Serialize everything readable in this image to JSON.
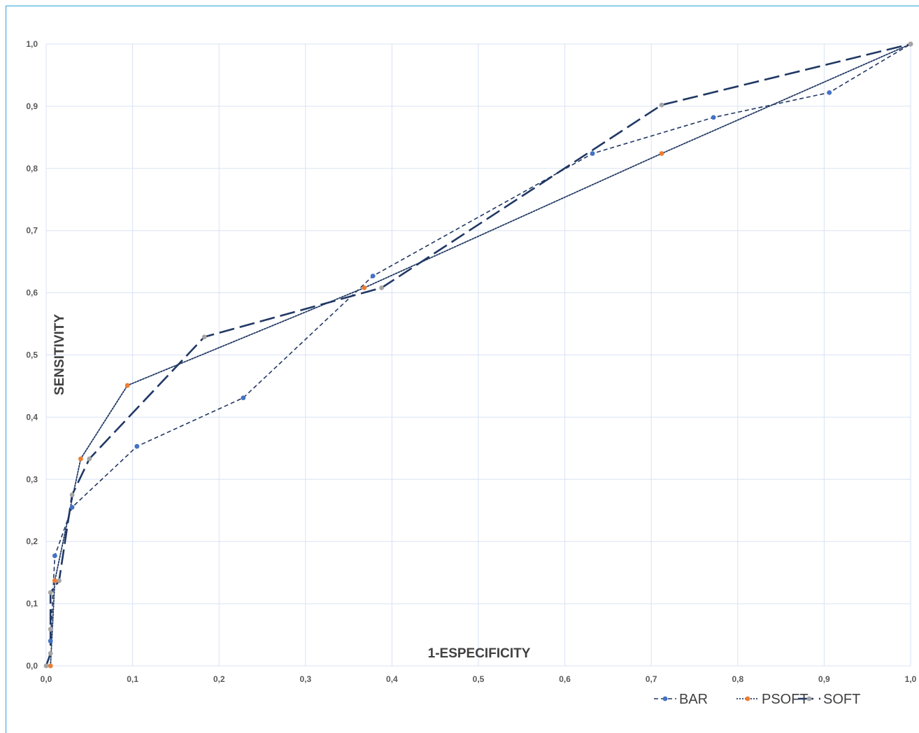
{
  "chart_data": {
    "type": "line",
    "title": "",
    "xlabel": "1-ESPECIFICITY",
    "ylabel": "SENSITIVITY",
    "xlim": [
      0,
      1
    ],
    "ylim": [
      0,
      1
    ],
    "x_ticks": [
      "0,0",
      "0,1",
      "0,2",
      "0,3",
      "0,4",
      "0,5",
      "0,6",
      "0,7",
      "0,8",
      "0,9",
      "1,0"
    ],
    "y_ticks": [
      "0,0",
      "0,1",
      "0,2",
      "0,3",
      "0,4",
      "0,5",
      "0,6",
      "0,7",
      "0,8",
      "0,9",
      "1,0"
    ],
    "grid": true,
    "legend_position": "bottom-right",
    "series": [
      {
        "name": "BAR",
        "color": "#4472c4",
        "line_style": "dashed",
        "points": [
          [
            0.005,
            0.04
          ],
          [
            0.01,
            0.177
          ],
          [
            0.03,
            0.255
          ],
          [
            0.105,
            0.353
          ],
          [
            0.228,
            0.431
          ],
          [
            0.378,
            0.627
          ],
          [
            0.632,
            0.824
          ],
          [
            0.772,
            0.882
          ],
          [
            0.906,
            0.922
          ],
          [
            1.0,
            1.0
          ]
        ]
      },
      {
        "name": "PSOFT",
        "color": "#ed7d31",
        "line_style": "dotted",
        "points": [
          [
            0.005,
            0.0
          ],
          [
            0.01,
            0.137
          ],
          [
            0.04,
            0.333
          ],
          [
            0.094,
            0.451
          ],
          [
            0.368,
            0.608
          ],
          [
            0.712,
            0.824
          ],
          [
            1.0,
            1.0
          ]
        ]
      },
      {
        "name": "SOFT",
        "color": "#a5a5a5",
        "line_style": "long-dash",
        "points": [
          [
            0.0,
            0.0
          ],
          [
            0.005,
            0.02
          ],
          [
            0.005,
            0.059
          ],
          [
            0.005,
            0.118
          ],
          [
            0.015,
            0.137
          ],
          [
            0.03,
            0.275
          ],
          [
            0.05,
            0.333
          ],
          [
            0.183,
            0.529
          ],
          [
            0.388,
            0.608
          ],
          [
            0.712,
            0.902
          ],
          [
            1.0,
            1.0
          ]
        ]
      }
    ],
    "line_color": "#203864",
    "grid_color": "#d9e2f3"
  }
}
